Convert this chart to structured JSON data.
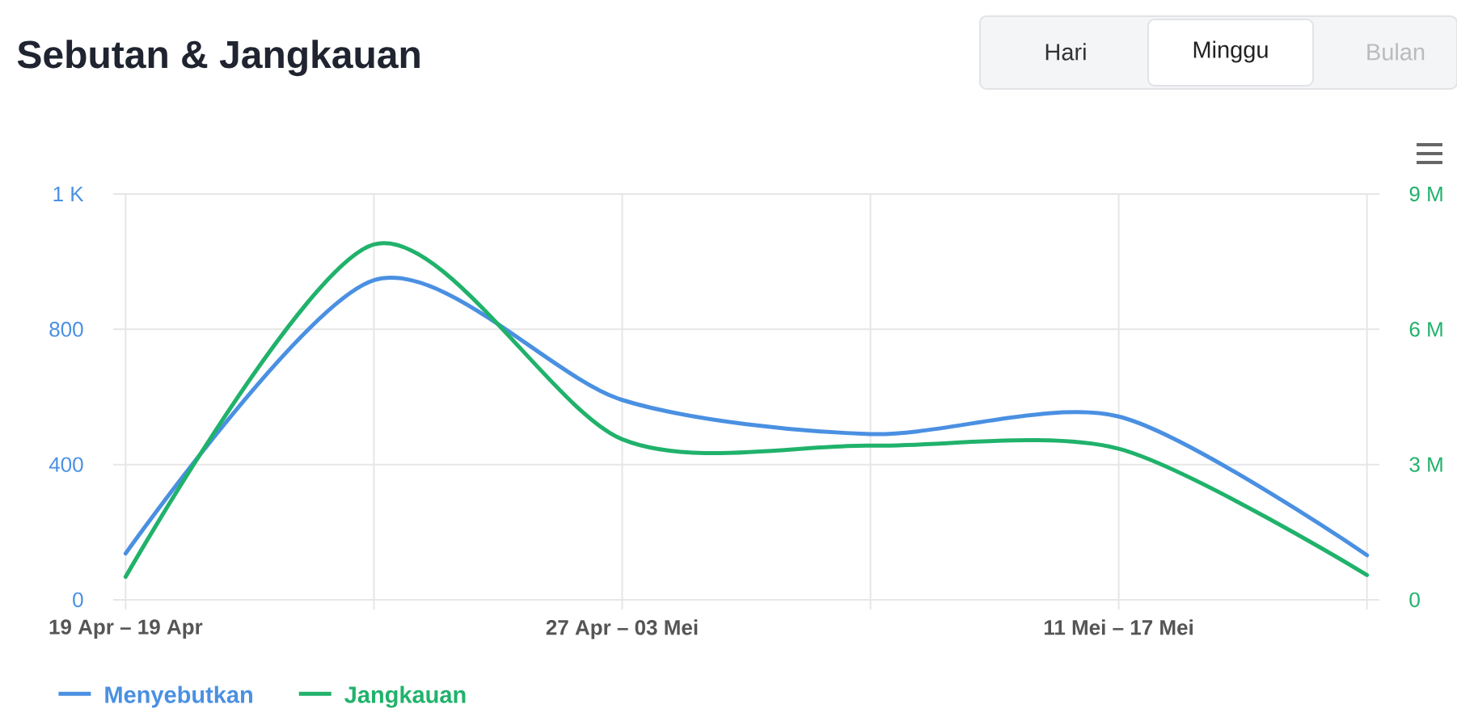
{
  "chart_data": {
    "type": "line",
    "title": "Sebutan & Jangkauan",
    "categories": [
      "19 Apr – 19 Apr",
      null,
      "27 Apr – 03 Mei",
      null,
      "11 Mei – 17 Mei",
      null
    ],
    "series": [
      {
        "name": "Menyebutkan",
        "color": "#4a90e2",
        "values": [
          137,
          945,
          591,
          490,
          542,
          132
        ]
      },
      {
        "name": "Jangkauan",
        "color": "#20b26b",
        "axis": "y2",
        "values": [
          510000,
          7880000,
          3560000,
          3420000,
          3350000,
          550000
        ]
      }
    ],
    "ylim": [
      0,
      1200
    ],
    "yticks": [
      0,
      400,
      800,
      {
        "value": 1200,
        "label": "1 K"
      }
    ],
    "y2lim": [
      0,
      9000000
    ],
    "y2ticks": [
      0,
      {
        "value": 3000000,
        "label": "3 M"
      },
      {
        "value": 6000000,
        "label": "6 M"
      },
      {
        "value": 9000000,
        "label": "9 M"
      }
    ],
    "grid": true,
    "legend": "bottom left",
    "annotations": [
      "Hari",
      "Minggu",
      "Bulan"
    ]
  }
}
